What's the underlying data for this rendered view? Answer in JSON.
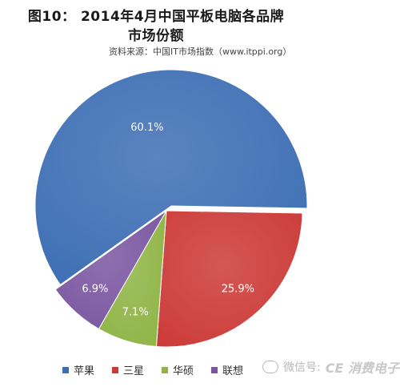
{
  "title_line1": "图10： 2014年4月中国平板电脑各品牌",
  "title_line2": "市场份额",
  "source": "资料来源：中国IT市场指数（www.itppi.org）",
  "chart_data": {
    "type": "pie",
    "title": "图10： 2014年4月中国平板电脑各品牌市场份额",
    "labels": [
      "苹果",
      "三星",
      "华硕",
      "联想"
    ],
    "values": [
      60.1,
      25.9,
      7.1,
      6.9
    ],
    "value_labels": [
      "60.1%",
      "25.9%",
      "7.1%",
      "6.9%"
    ],
    "colors": [
      "#3d6eb4",
      "#cc3a37",
      "#8fb445",
      "#7a56a0"
    ],
    "legend_position": "bottom",
    "exploded_slice": "苹果"
  },
  "watermark": {
    "icon": "wechat-icon",
    "text": "微信号: ",
    "brand": "CE 消费电子"
  }
}
